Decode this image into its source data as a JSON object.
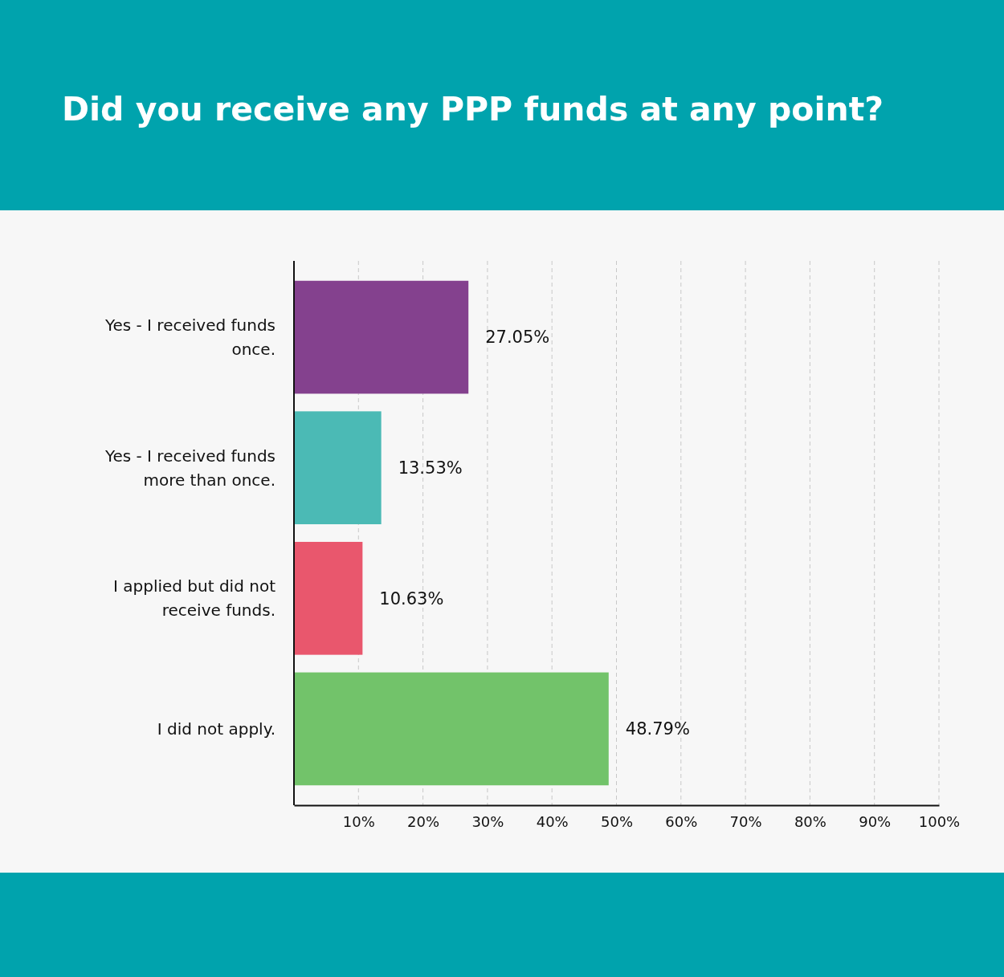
{
  "chart_data": {
    "type": "bar",
    "orientation": "horizontal",
    "title": "Did you receive any PPP funds at any point?",
    "categories": [
      "Yes - I received funds once.",
      "Yes - I received funds more than once.",
      "I applied but did not receive funds.",
      "I did not apply."
    ],
    "values": [
      27.05,
      13.53,
      10.63,
      48.79
    ],
    "colors": [
      "#84418e",
      "#4bbab5",
      "#e9576d",
      "#72c36a"
    ],
    "value_labels": [
      "27.05%",
      "13.53%",
      "10.63%",
      "48.79%"
    ],
    "xlim": [
      0,
      100
    ],
    "xticks": [
      {
        "value": 10,
        "label": "10%"
      },
      {
        "value": 20,
        "label": "20%"
      },
      {
        "value": 30,
        "label": "30%"
      },
      {
        "value": 40,
        "label": "40%"
      },
      {
        "value": 50,
        "label": "50%"
      },
      {
        "value": 60,
        "label": "60%"
      },
      {
        "value": 70,
        "label": "70%"
      },
      {
        "value": 80,
        "label": "80%"
      },
      {
        "value": 90,
        "label": "90%"
      },
      {
        "value": 100,
        "label": "100%"
      }
    ],
    "grid": "x"
  }
}
